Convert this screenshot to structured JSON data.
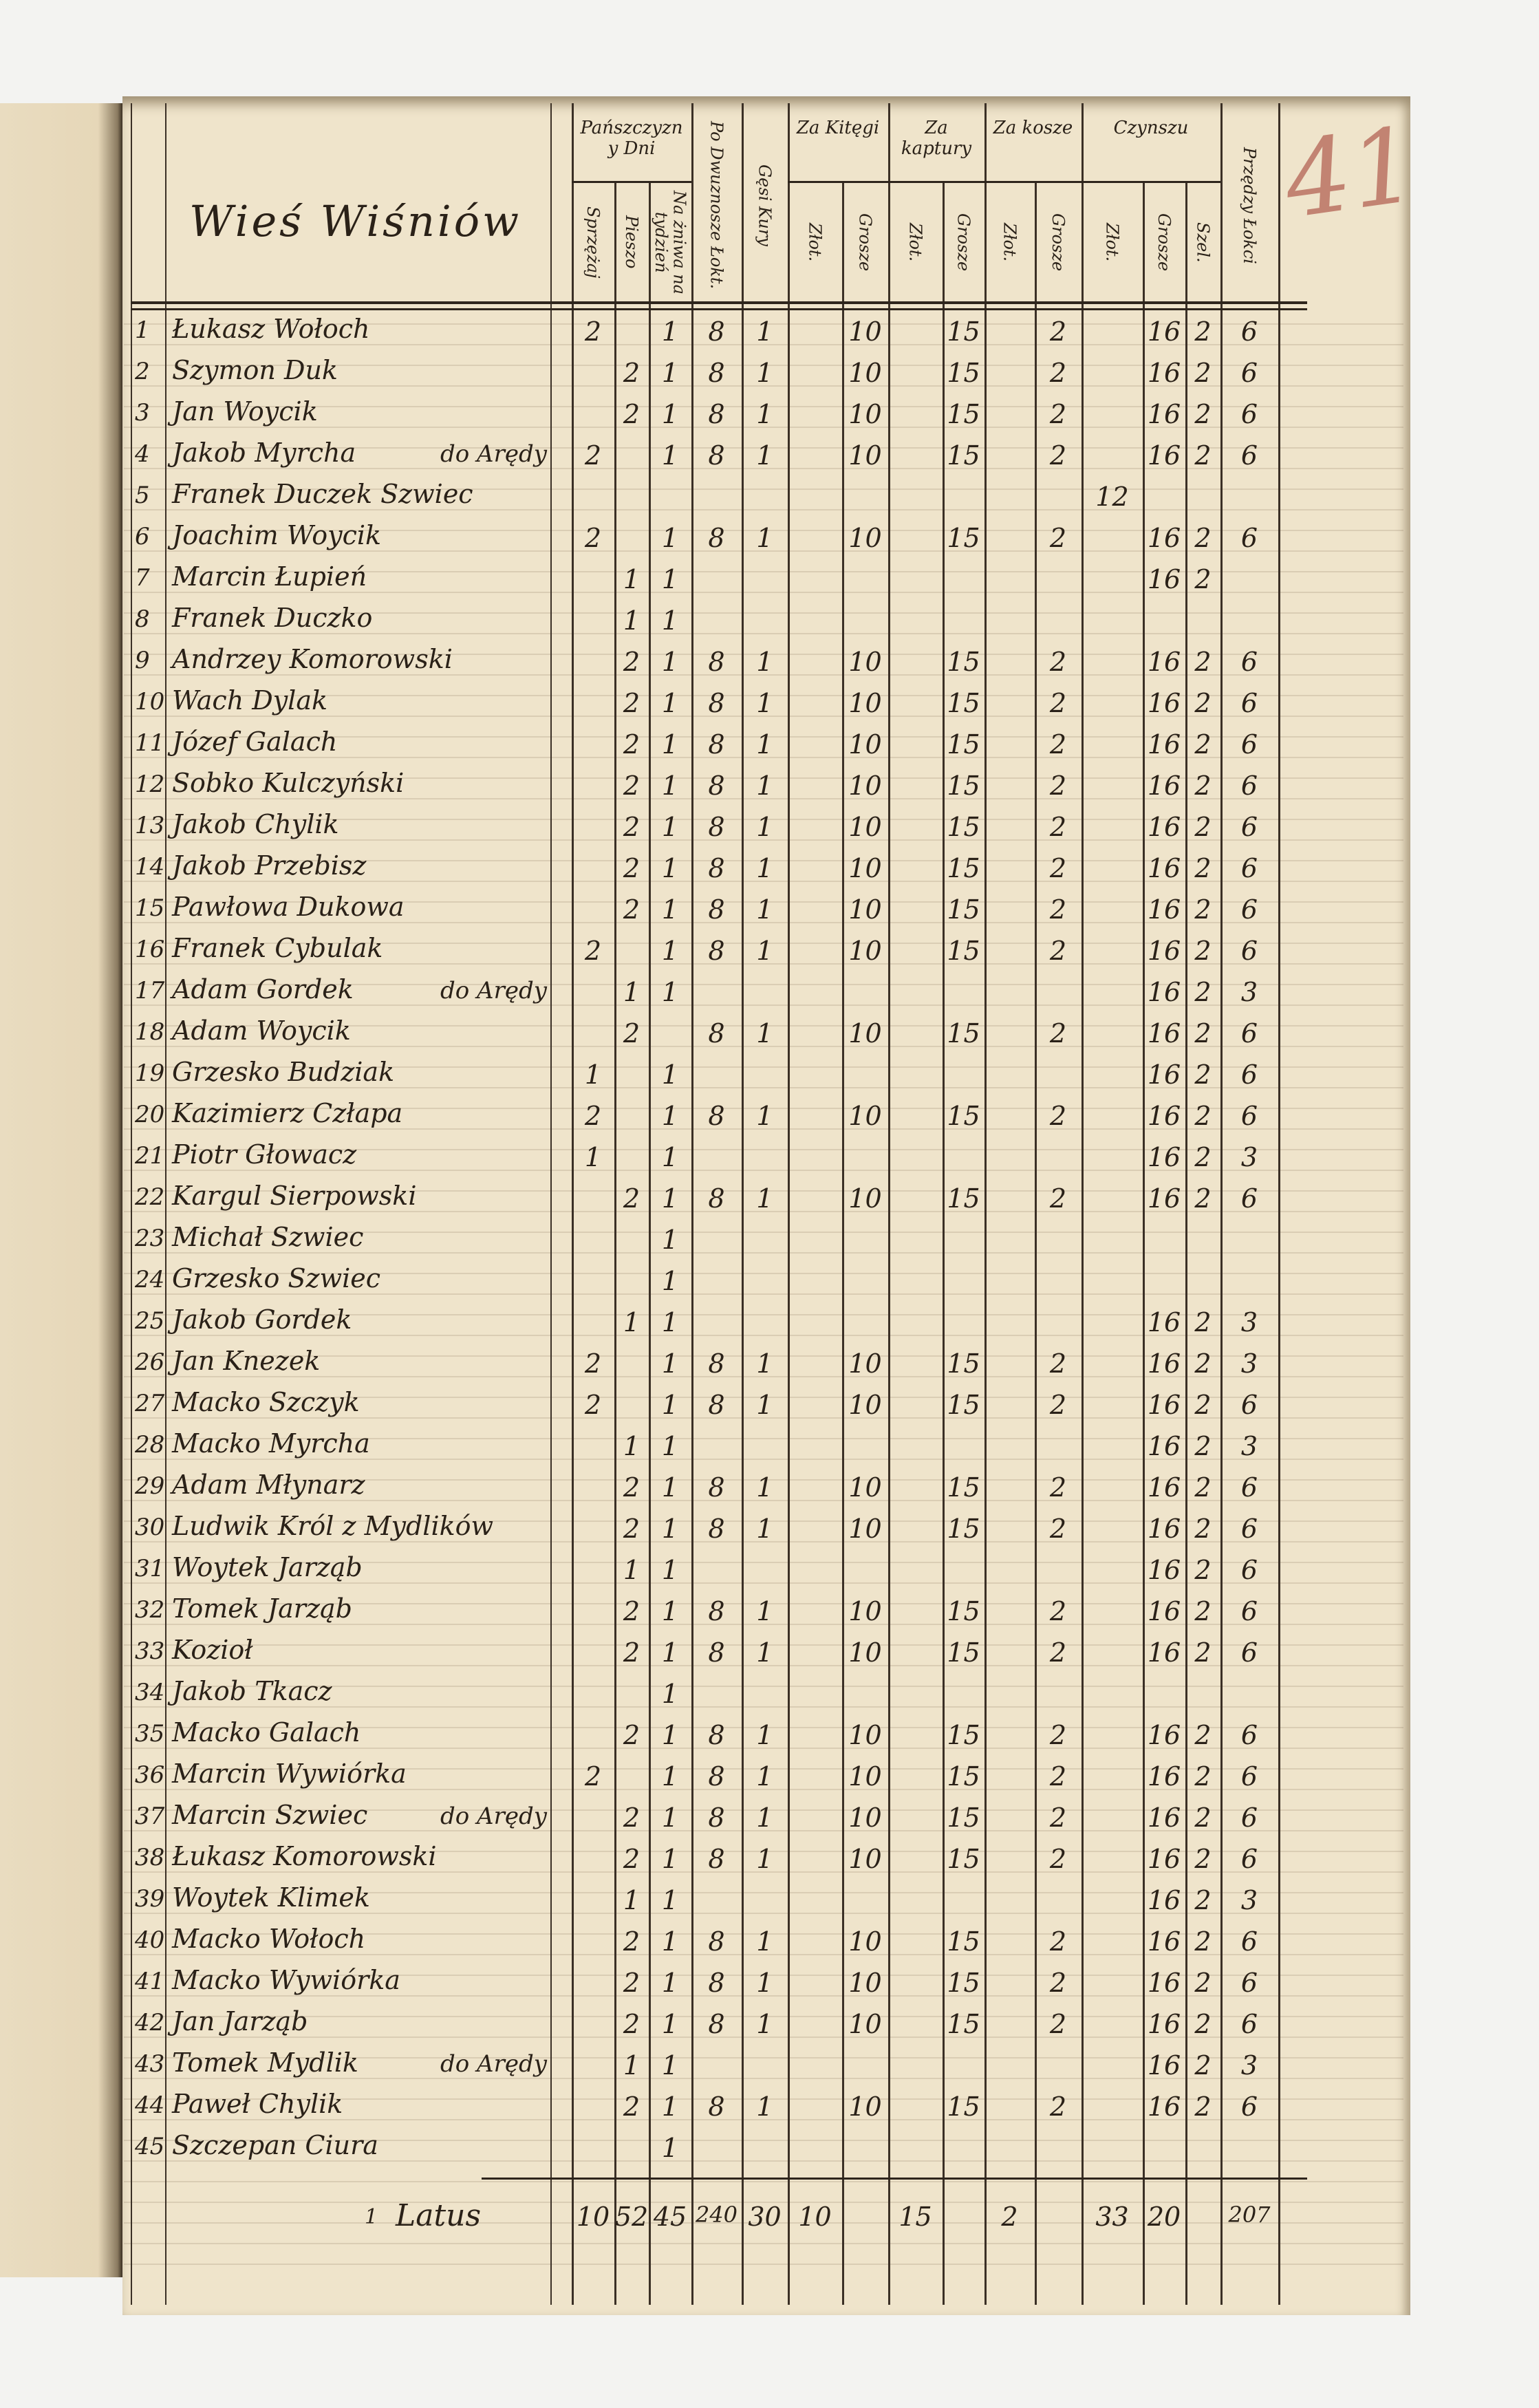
{
  "title": "Wieś Wiśniów",
  "folio_mark": "41",
  "colors": {
    "paper": "#efe4cb",
    "ink": "#2a2118",
    "red_pencil": "#b86b5c"
  },
  "header": {
    "groups": [
      {
        "label": "Pańszczyzny Dni"
      },
      {
        "label": "Za Kitęgi"
      },
      {
        "label": "Za kaptury"
      },
      {
        "label": "Za kosze"
      },
      {
        "label": "Czynszu"
      }
    ],
    "columns": [
      "Sprzężaj",
      "Pieszo",
      "Na żniwa na tydzień",
      "Po Dwuznosze Łokt.",
      "Gęsi Kury",
      "Złot.",
      "Grosze",
      "Złot.",
      "Grosze",
      "Złot.",
      "Grosze",
      "Złot.",
      "Grosze",
      "Szel.",
      "Przędzy Łokci"
    ]
  },
  "rows": [
    {
      "no": "1",
      "name": "Łukasz Wołoch",
      "note": "",
      "v": [
        "2",
        "",
        "1",
        "8",
        "1",
        "",
        "10",
        "",
        "15",
        "",
        "2",
        "",
        "16",
        "2",
        "6"
      ]
    },
    {
      "no": "2",
      "name": "Szymon Duk",
      "note": "",
      "v": [
        "",
        "2",
        "1",
        "8",
        "1",
        "",
        "10",
        "",
        "15",
        "",
        "2",
        "",
        "16",
        "2",
        "6"
      ]
    },
    {
      "no": "3",
      "name": "Jan Woycik",
      "note": "",
      "v": [
        "",
        "2",
        "1",
        "8",
        "1",
        "",
        "10",
        "",
        "15",
        "",
        "2",
        "",
        "16",
        "2",
        "6"
      ]
    },
    {
      "no": "4",
      "name": "Jakob Myrcha",
      "note": "do Arędy",
      "v": [
        "2",
        "",
        "1",
        "8",
        "1",
        "",
        "10",
        "",
        "15",
        "",
        "2",
        "",
        "16",
        "2",
        "6"
      ]
    },
    {
      "no": "5",
      "name": "Franek Duczek Szwiec",
      "note": "",
      "v": [
        "",
        "",
        "",
        "",
        "",
        "",
        "",
        "",
        "",
        "",
        "",
        "12",
        "",
        "",
        ""
      ]
    },
    {
      "no": "6",
      "name": "Joachim Woycik",
      "note": "",
      "v": [
        "2",
        "",
        "1",
        "8",
        "1",
        "",
        "10",
        "",
        "15",
        "",
        "2",
        "",
        "16",
        "2",
        "6"
      ]
    },
    {
      "no": "7",
      "name": "Marcin Łupień",
      "note": "",
      "v": [
        "",
        "1",
        "1",
        "",
        "",
        "",
        "",
        "",
        "",
        "",
        "",
        "",
        "16",
        "2",
        ""
      ]
    },
    {
      "no": "8",
      "name": "Franek Duczko",
      "note": "",
      "v": [
        "",
        "1",
        "1",
        "",
        "",
        "",
        "",
        "",
        "",
        "",
        "",
        "",
        "",
        "",
        ""
      ]
    },
    {
      "no": "9",
      "name": "Andrzey Komorowski",
      "note": "",
      "v": [
        "",
        "2",
        "1",
        "8",
        "1",
        "",
        "10",
        "",
        "15",
        "",
        "2",
        "",
        "16",
        "2",
        "6"
      ]
    },
    {
      "no": "10",
      "name": "Wach Dylak",
      "note": "",
      "v": [
        "",
        "2",
        "1",
        "8",
        "1",
        "",
        "10",
        "",
        "15",
        "",
        "2",
        "",
        "16",
        "2",
        "6"
      ]
    },
    {
      "no": "11",
      "name": "Józef Galach",
      "note": "",
      "v": [
        "",
        "2",
        "1",
        "8",
        "1",
        "",
        "10",
        "",
        "15",
        "",
        "2",
        "",
        "16",
        "2",
        "6"
      ]
    },
    {
      "no": "12",
      "name": "Sobko Kulczyński",
      "note": "",
      "v": [
        "",
        "2",
        "1",
        "8",
        "1",
        "",
        "10",
        "",
        "15",
        "",
        "2",
        "",
        "16",
        "2",
        "6"
      ]
    },
    {
      "no": "13",
      "name": "Jakob Chylik",
      "note": "",
      "v": [
        "",
        "2",
        "1",
        "8",
        "1",
        "",
        "10",
        "",
        "15",
        "",
        "2",
        "",
        "16",
        "2",
        "6"
      ]
    },
    {
      "no": "14",
      "name": "Jakob Przebisz",
      "note": "",
      "v": [
        "",
        "2",
        "1",
        "8",
        "1",
        "",
        "10",
        "",
        "15",
        "",
        "2",
        "",
        "16",
        "2",
        "6"
      ]
    },
    {
      "no": "15",
      "name": "Pawłowa Dukowa",
      "note": "",
      "v": [
        "",
        "2",
        "1",
        "8",
        "1",
        "",
        "10",
        "",
        "15",
        "",
        "2",
        "",
        "16",
        "2",
        "6"
      ]
    },
    {
      "no": "16",
      "name": "Franek Cybulak",
      "note": "",
      "v": [
        "2",
        "",
        "1",
        "8",
        "1",
        "",
        "10",
        "",
        "15",
        "",
        "2",
        "",
        "16",
        "2",
        "6"
      ]
    },
    {
      "no": "17",
      "name": "Adam Gordek",
      "note": "do Arędy",
      "v": [
        "",
        "1",
        "1",
        "",
        "",
        "",
        "",
        "",
        "",
        "",
        "",
        "",
        "16",
        "2",
        "3"
      ]
    },
    {
      "no": "18",
      "name": "Adam Woycik",
      "note": "",
      "v": [
        "",
        "2",
        "",
        "8",
        "1",
        "",
        "10",
        "",
        "15",
        "",
        "2",
        "",
        "16",
        "2",
        "6"
      ]
    },
    {
      "no": "19",
      "name": "Grzesko Budziak",
      "note": "",
      "v": [
        "1",
        "",
        "1",
        "",
        "",
        "",
        "",
        "",
        "",
        "",
        "",
        "",
        "16",
        "2",
        "6"
      ]
    },
    {
      "no": "20",
      "name": "Kazimierz Człapa",
      "note": "",
      "v": [
        "2",
        "",
        "1",
        "8",
        "1",
        "",
        "10",
        "",
        "15",
        "",
        "2",
        "",
        "16",
        "2",
        "6"
      ]
    },
    {
      "no": "21",
      "name": "Piotr Głowacz",
      "note": "",
      "v": [
        "1",
        "",
        "1",
        "",
        "",
        "",
        "",
        "",
        "",
        "",
        "",
        "",
        "16",
        "2",
        "3"
      ]
    },
    {
      "no": "22",
      "name": "Kargul Sierpowski",
      "note": "",
      "v": [
        "",
        "2",
        "1",
        "8",
        "1",
        "",
        "10",
        "",
        "15",
        "",
        "2",
        "",
        "16",
        "2",
        "6"
      ]
    },
    {
      "no": "23",
      "name": "Michał Szwiec",
      "note": "",
      "v": [
        "",
        "",
        "1",
        "",
        "",
        "",
        "",
        "",
        "",
        "",
        "",
        "",
        "",
        "",
        ""
      ]
    },
    {
      "no": "24",
      "name": "Grzesko Szwiec",
      "note": "",
      "v": [
        "",
        "",
        "1",
        "",
        "",
        "",
        "",
        "",
        "",
        "",
        "",
        "",
        "",
        "",
        ""
      ]
    },
    {
      "no": "25",
      "name": "Jakob Gordek",
      "note": "",
      "v": [
        "",
        "1",
        "1",
        "",
        "",
        "",
        "",
        "",
        "",
        "",
        "",
        "",
        "16",
        "2",
        "3"
      ]
    },
    {
      "no": "26",
      "name": "Jan Knezek",
      "note": "",
      "v": [
        "2",
        "",
        "1",
        "8",
        "1",
        "",
        "10",
        "",
        "15",
        "",
        "2",
        "",
        "16",
        "2",
        "3"
      ]
    },
    {
      "no": "27",
      "name": "Macko Szczyk",
      "note": "",
      "v": [
        "2",
        "",
        "1",
        "8",
        "1",
        "",
        "10",
        "",
        "15",
        "",
        "2",
        "",
        "16",
        "2",
        "6"
      ]
    },
    {
      "no": "28",
      "name": "Macko Myrcha",
      "note": "",
      "v": [
        "",
        "1",
        "1",
        "",
        "",
        "",
        "",
        "",
        "",
        "",
        "",
        "",
        "16",
        "2",
        "3"
      ]
    },
    {
      "no": "29",
      "name": "Adam Młynarz",
      "note": "",
      "v": [
        "",
        "2",
        "1",
        "8",
        "1",
        "",
        "10",
        "",
        "15",
        "",
        "2",
        "",
        "16",
        "2",
        "6"
      ]
    },
    {
      "no": "30",
      "name": "Ludwik Król z Mydlików",
      "note": "",
      "v": [
        "",
        "2",
        "1",
        "8",
        "1",
        "",
        "10",
        "",
        "15",
        "",
        "2",
        "",
        "16",
        "2",
        "6"
      ]
    },
    {
      "no": "31",
      "name": "Woytek Jarząb",
      "note": "",
      "v": [
        "",
        "1",
        "1",
        "",
        "",
        "",
        "",
        "",
        "",
        "",
        "",
        "",
        "16",
        "2",
        "6"
      ]
    },
    {
      "no": "32",
      "name": "Tomek Jarząb",
      "note": "",
      "v": [
        "",
        "2",
        "1",
        "8",
        "1",
        "",
        "10",
        "",
        "15",
        "",
        "2",
        "",
        "16",
        "2",
        "6"
      ]
    },
    {
      "no": "33",
      "name": "Kozioł",
      "note": "",
      "v": [
        "",
        "2",
        "1",
        "8",
        "1",
        "",
        "10",
        "",
        "15",
        "",
        "2",
        "",
        "16",
        "2",
        "6"
      ]
    },
    {
      "no": "34",
      "name": "Jakob Tkacz",
      "note": "",
      "v": [
        "",
        "",
        "1",
        "",
        "",
        "",
        "",
        "",
        "",
        "",
        "",
        "",
        "",
        "",
        ""
      ]
    },
    {
      "no": "35",
      "name": "Macko Galach",
      "note": "",
      "v": [
        "",
        "2",
        "1",
        "8",
        "1",
        "",
        "10",
        "",
        "15",
        "",
        "2",
        "",
        "16",
        "2",
        "6"
      ]
    },
    {
      "no": "36",
      "name": "Marcin Wywiórka",
      "note": "",
      "v": [
        "2",
        "",
        "1",
        "8",
        "1",
        "",
        "10",
        "",
        "15",
        "",
        "2",
        "",
        "16",
        "2",
        "6"
      ]
    },
    {
      "no": "37",
      "name": "Marcin Szwiec",
      "note": "do Arędy",
      "v": [
        "",
        "2",
        "1",
        "8",
        "1",
        "",
        "10",
        "",
        "15",
        "",
        "2",
        "",
        "16",
        "2",
        "6"
      ]
    },
    {
      "no": "38",
      "name": "Łukasz Komorowski",
      "note": "",
      "v": [
        "",
        "2",
        "1",
        "8",
        "1",
        "",
        "10",
        "",
        "15",
        "",
        "2",
        "",
        "16",
        "2",
        "6"
      ]
    },
    {
      "no": "39",
      "name": "Woytek Klimek",
      "note": "",
      "v": [
        "",
        "1",
        "1",
        "",
        "",
        "",
        "",
        "",
        "",
        "",
        "",
        "",
        "16",
        "2",
        "3"
      ]
    },
    {
      "no": "40",
      "name": "Macko Wołoch",
      "note": "",
      "v": [
        "",
        "2",
        "1",
        "8",
        "1",
        "",
        "10",
        "",
        "15",
        "",
        "2",
        "",
        "16",
        "2",
        "6"
      ]
    },
    {
      "no": "41",
      "name": "Macko Wywiórka",
      "note": "",
      "v": [
        "",
        "2",
        "1",
        "8",
        "1",
        "",
        "10",
        "",
        "15",
        "",
        "2",
        "",
        "16",
        "2",
        "6"
      ]
    },
    {
      "no": "42",
      "name": "Jan Jarząb",
      "note": "",
      "v": [
        "",
        "2",
        "1",
        "8",
        "1",
        "",
        "10",
        "",
        "15",
        "",
        "2",
        "",
        "16",
        "2",
        "6"
      ]
    },
    {
      "no": "43",
      "name": "Tomek Mydlik",
      "note": "do Arędy",
      "v": [
        "",
        "1",
        "1",
        "",
        "",
        "",
        "",
        "",
        "",
        "",
        "",
        "",
        "16",
        "2",
        "3"
      ]
    },
    {
      "no": "44",
      "name": "Paweł Chylik",
      "note": "",
      "v": [
        "",
        "2",
        "1",
        "8",
        "1",
        "",
        "10",
        "",
        "15",
        "",
        "2",
        "",
        "16",
        "2",
        "6"
      ]
    },
    {
      "no": "45",
      "name": "Szczepan Ciura",
      "note": "",
      "v": [
        "",
        "",
        "1",
        "",
        "",
        "",
        "",
        "",
        "",
        "",
        "",
        "",
        "",
        "",
        ""
      ]
    }
  ],
  "totals": {
    "no": "1",
    "label": "Latus",
    "v": [
      "10",
      "52",
      "45",
      "240",
      "30",
      "10",
      "",
      "15",
      "",
      "2",
      "",
      "33",
      "20",
      "",
      "207"
    ]
  }
}
